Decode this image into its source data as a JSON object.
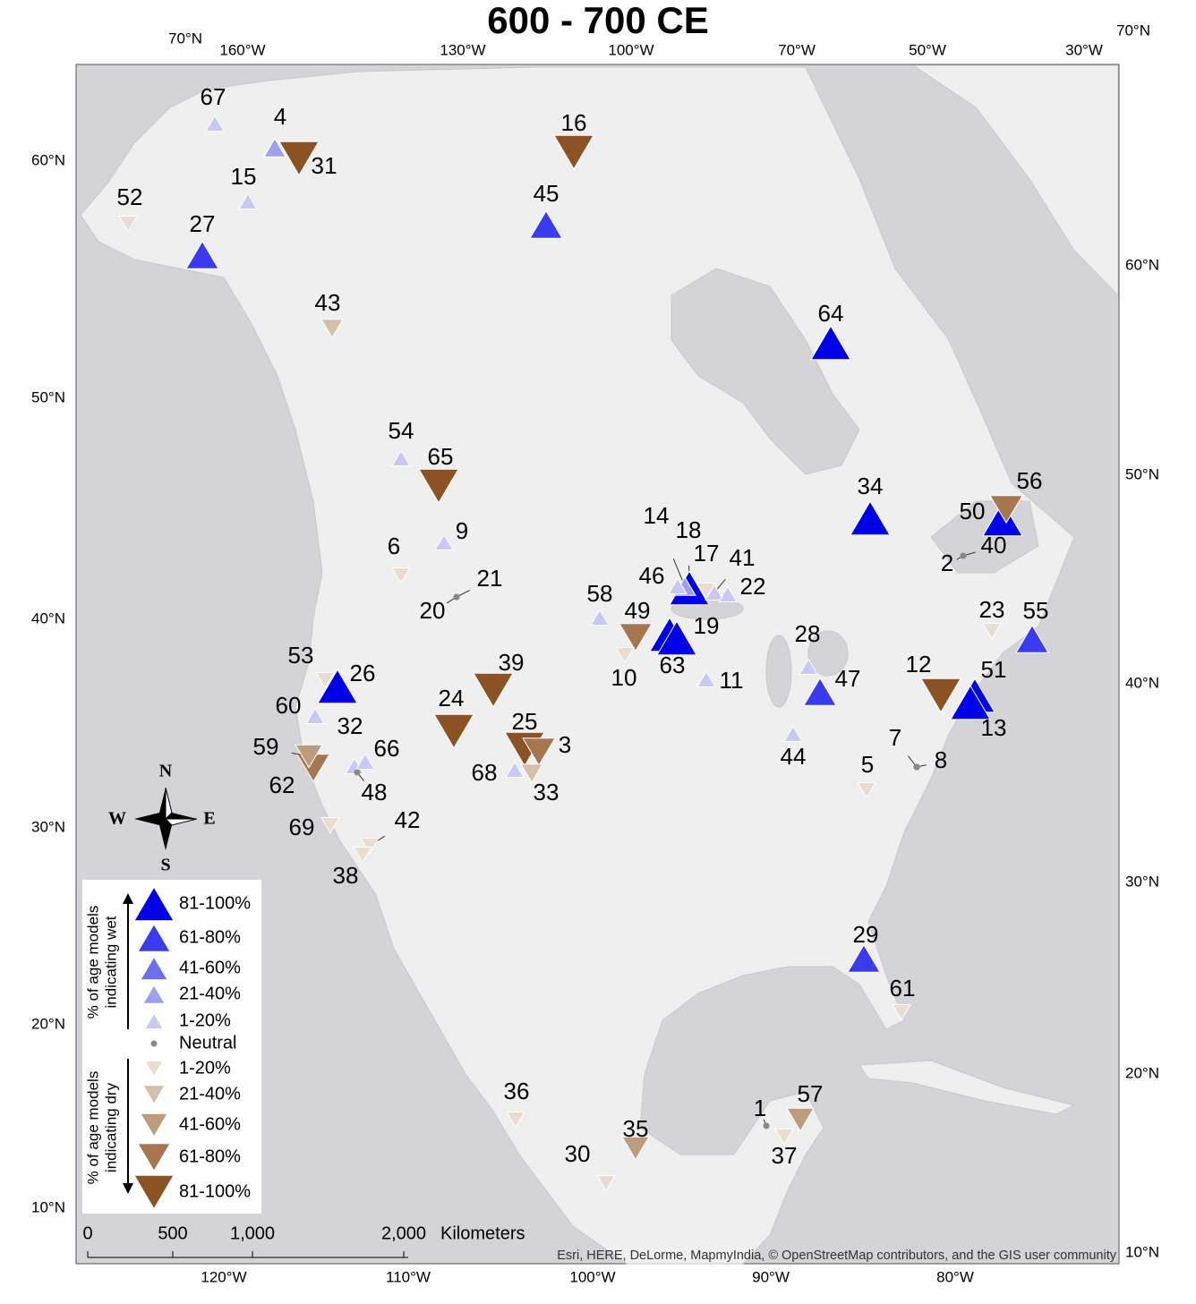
{
  "title": "600 - 700 CE",
  "graticule": {
    "top": [
      "70°N",
      "160°W",
      "130°W",
      "100°W",
      "70°W",
      "50°W",
      "30°W",
      "70°N"
    ],
    "left": [
      "60°N",
      "50°N",
      "40°N",
      "30°N",
      "20°N",
      "10°N"
    ],
    "right": [
      "60°N",
      "50°N",
      "40°N",
      "30°N",
      "20°N",
      "10°N"
    ],
    "bottom": [
      "120°W",
      "110°W",
      "100°W",
      "90°W",
      "80°W"
    ]
  },
  "legend": {
    "wet_title": [
      "% of age models",
      "indicating wet"
    ],
    "dry_title": [
      "% of age models",
      "indicating dry"
    ],
    "items": [
      {
        "label": "81-100%",
        "color": "#0000e6",
        "marker": "up"
      },
      {
        "label": "61-80%",
        "color": "#3a3aee",
        "marker": "up"
      },
      {
        "label": "41-60%",
        "color": "#6e6ef0",
        "marker": "up"
      },
      {
        "label": "21-40%",
        "color": "#9f9ff2",
        "marker": "up"
      },
      {
        "label": "1-20%",
        "color": "#c8c8f5",
        "marker": "up"
      },
      {
        "label": "Neutral",
        "color": "#888888",
        "marker": "dot"
      },
      {
        "label": "1-20%",
        "color": "#e8ddd0",
        "marker": "down"
      },
      {
        "label": "21-40%",
        "color": "#d4bfa8",
        "marker": "down"
      },
      {
        "label": "41-60%",
        "color": "#bd9c7e",
        "marker": "down"
      },
      {
        "label": "61-80%",
        "color": "#a57650",
        "marker": "down"
      },
      {
        "label": "81-100%",
        "color": "#8b5323",
        "marker": "down"
      }
    ]
  },
  "sites": [
    {
      "label": "67",
      "color": "#c8c8f5",
      "marker": "up"
    },
    {
      "label": "4",
      "color": "#9f9ff2",
      "marker": "up"
    },
    {
      "label": "31",
      "color": "#8b5323",
      "marker": "down"
    },
    {
      "label": "15",
      "color": "#c8c8f5",
      "marker": "up"
    },
    {
      "label": "52",
      "color": "#e8ddd0",
      "marker": "down"
    },
    {
      "label": "27",
      "color": "#3a3aee",
      "marker": "up"
    },
    {
      "label": "16",
      "color": "#8b5323",
      "marker": "down"
    },
    {
      "label": "45",
      "color": "#3a3aee",
      "marker": "up"
    },
    {
      "label": "43",
      "color": "#d4bfa8",
      "marker": "down"
    },
    {
      "label": "64",
      "color": "#0000e6",
      "marker": "up"
    },
    {
      "label": "54",
      "color": "#c8c8f5",
      "marker": "up"
    },
    {
      "label": "65",
      "color": "#8b5323",
      "marker": "down"
    },
    {
      "label": "9",
      "color": "#c8c8f5",
      "marker": "up"
    },
    {
      "label": "6",
      "color": "#e8ddd0",
      "marker": "down"
    },
    {
      "label": "21",
      "color": "#888888",
      "marker": "dot"
    },
    {
      "label": "20",
      "color": "#888888",
      "marker": "dot"
    },
    {
      "label": "34",
      "color": "#0000e6",
      "marker": "up"
    },
    {
      "label": "56",
      "color": "#a57650",
      "marker": "down"
    },
    {
      "label": "50",
      "color": "#0000e6",
      "marker": "up"
    },
    {
      "label": "40",
      "color": "#888888",
      "marker": "dot"
    },
    {
      "label": "2",
      "color": "#888888",
      "marker": "dot"
    },
    {
      "label": "46",
      "color": "#c8c8f5",
      "marker": "up"
    },
    {
      "label": "14",
      "color": "#9f9ff2",
      "marker": "up"
    },
    {
      "label": "18",
      "color": "#0000e6",
      "marker": "up"
    },
    {
      "label": "17",
      "color": "#e8ddd0",
      "marker": "down"
    },
    {
      "label": "41",
      "color": "#c8c8f5",
      "marker": "up"
    },
    {
      "label": "22",
      "color": "#c8c8f5",
      "marker": "up"
    },
    {
      "label": "58",
      "color": "#c8c8f5",
      "marker": "up"
    },
    {
      "label": "49",
      "color": "#a57650",
      "marker": "down"
    },
    {
      "label": "10",
      "color": "#e8ddd0",
      "marker": "down"
    },
    {
      "label": "19",
      "color": "#0000e6",
      "marker": "up"
    },
    {
      "label": "63",
      "color": "#0000e6",
      "marker": "up"
    },
    {
      "label": "11",
      "color": "#c8c8f5",
      "marker": "up"
    },
    {
      "label": "28",
      "color": "#c8c8f5",
      "marker": "up"
    },
    {
      "label": "47",
      "color": "#3a3aee",
      "marker": "up"
    },
    {
      "label": "44",
      "color": "#c8c8f5",
      "marker": "up"
    },
    {
      "label": "53",
      "color": "#e8ddd0",
      "marker": "down"
    },
    {
      "label": "26",
      "color": "#0000e6",
      "marker": "up"
    },
    {
      "label": "60",
      "color": "#c8c8f5",
      "marker": "up"
    },
    {
      "label": "39",
      "color": "#8b5323",
      "marker": "down"
    },
    {
      "label": "24",
      "color": "#8b5323",
      "marker": "down"
    },
    {
      "label": "25",
      "color": "#8b5323",
      "marker": "down"
    },
    {
      "label": "3",
      "color": "#a57650",
      "marker": "down"
    },
    {
      "label": "33",
      "color": "#d4bfa8",
      "marker": "down"
    },
    {
      "label": "68",
      "color": "#c8c8f5",
      "marker": "up"
    },
    {
      "label": "32",
      "color": "#c8c8f5",
      "marker": "up"
    },
    {
      "label": "66",
      "color": "#c8c8f5",
      "marker": "up"
    },
    {
      "label": "48",
      "color": "#888888",
      "marker": "dot"
    },
    {
      "label": "59",
      "color": "#bd9c7e",
      "marker": "down"
    },
    {
      "label": "62",
      "color": "#a57650",
      "marker": "down"
    },
    {
      "label": "69",
      "color": "#e8ddd0",
      "marker": "down"
    },
    {
      "label": "42",
      "color": "#e8ddd0",
      "marker": "down"
    },
    {
      "label": "38",
      "color": "#e8ddd0",
      "marker": "down"
    },
    {
      "label": "12",
      "color": "#8b5323",
      "marker": "down"
    },
    {
      "label": "51",
      "color": "#0000e6",
      "marker": "up"
    },
    {
      "label": "13",
      "color": "#0000e6",
      "marker": "up"
    },
    {
      "label": "23",
      "color": "#e8ddd0",
      "marker": "down"
    },
    {
      "label": "55",
      "color": "#3a3aee",
      "marker": "up"
    },
    {
      "label": "7",
      "color": "#888888",
      "marker": "dot"
    },
    {
      "label": "8",
      "color": "#888888",
      "marker": "dot"
    },
    {
      "label": "5",
      "color": "#e8ddd0",
      "marker": "down"
    },
    {
      "label": "29",
      "color": "#3a3aee",
      "marker": "up"
    },
    {
      "label": "61",
      "color": "#e8ddd0",
      "marker": "down"
    },
    {
      "label": "36",
      "color": "#e8ddd0",
      "marker": "down"
    },
    {
      "label": "35",
      "color": "#bd9c7e",
      "marker": "down"
    },
    {
      "label": "30",
      "color": "#e8ddd0",
      "marker": "down"
    },
    {
      "label": "1",
      "color": "#888888",
      "marker": "dot"
    },
    {
      "label": "57",
      "color": "#bd9c7e",
      "marker": "down"
    },
    {
      "label": "37",
      "color": "#e8ddd0",
      "marker": "down"
    }
  ],
  "compass": [
    "N",
    "E",
    "S",
    "W"
  ],
  "scale": {
    "ticks": [
      "0",
      "500",
      "1,000",
      "2,000"
    ],
    "unit": "Kilometers"
  },
  "attribution": "Esri, HERE, DeLorme, MapmyIndia, © OpenStreetMap contributors, and the GIS user community"
}
